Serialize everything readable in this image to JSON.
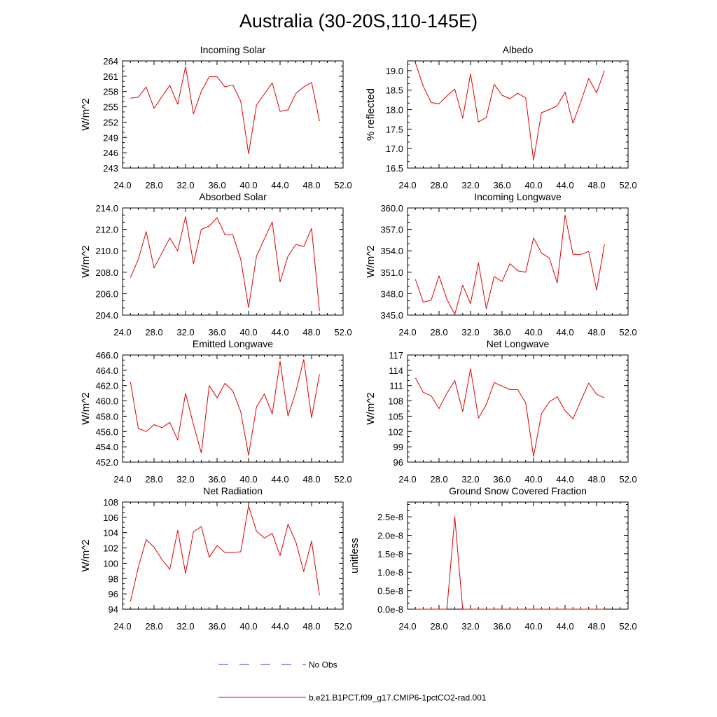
{
  "title": "Australia (30-20S,110-145E)",
  "colors": {
    "model": "#e00000",
    "obs": "#3a3ad0",
    "axis": "#000000"
  },
  "legend": [
    {
      "label": "No Obs",
      "style": "dashed",
      "color": "#3a3ad0"
    },
    {
      "label": "b.e21.B1PCT.f09_g17.CMIP6-1pctCO2-rad.001",
      "style": "solid",
      "color": "#e00000"
    }
  ],
  "chart_data": [
    {
      "type": "line",
      "title": "Incoming Solar",
      "xlabel": "",
      "ylabel": "W/m^2",
      "xlim": [
        24,
        52
      ],
      "ylim": [
        243,
        264
      ],
      "xticks": [
        "24.0",
        "28.0",
        "32.0",
        "36.0",
        "40.0",
        "44.0",
        "48.0",
        "52.0"
      ],
      "yticks": [
        "243",
        "246",
        "249",
        "252",
        "255",
        "258",
        "261",
        "264"
      ],
      "x": [
        25,
        26,
        27,
        28,
        29,
        30,
        31,
        32,
        33,
        34,
        35,
        36,
        37,
        38,
        39,
        40,
        41,
        42,
        43,
        44,
        45,
        46,
        47,
        48,
        49
      ],
      "series": [
        {
          "name": "b.e21.B1PCT.f09_g17.CMIP6-1pctCO2-rad.001",
          "values": [
            256.7,
            256.9,
            258.9,
            254.7,
            257.0,
            259.2,
            255.5,
            262.9,
            253.6,
            258.0,
            260.9,
            260.9,
            258.9,
            259.3,
            256.1,
            245.8,
            255.3,
            257.5,
            259.7,
            254.1,
            254.4,
            257.6,
            258.9,
            259.8,
            252.2
          ]
        }
      ]
    },
    {
      "type": "line",
      "title": "Albedo",
      "xlabel": "",
      "ylabel": "% reflected",
      "xlim": [
        24,
        52
      ],
      "ylim": [
        16.5,
        19.25
      ],
      "xticks": [
        "24.0",
        "28.0",
        "32.0",
        "36.0",
        "40.0",
        "44.0",
        "48.0",
        "52.0"
      ],
      "yticks": [
        "16.5",
        "17.0",
        "17.5",
        "18.0",
        "18.5",
        "19.0"
      ],
      "x": [
        25,
        26,
        27,
        28,
        29,
        30,
        31,
        32,
        33,
        34,
        35,
        36,
        37,
        38,
        39,
        40,
        41,
        42,
        43,
        44,
        45,
        46,
        47,
        48,
        49
      ],
      "series": [
        {
          "name": "b.e21.B1PCT.f09_g17.CMIP6-1pctCO2-rad.001",
          "values": [
            19.2,
            18.6,
            18.18,
            18.15,
            18.35,
            18.53,
            17.78,
            18.92,
            17.68,
            17.8,
            18.65,
            18.37,
            18.28,
            18.42,
            18.3,
            16.7,
            17.92,
            18.0,
            18.1,
            18.45,
            17.65,
            18.2,
            18.8,
            18.43,
            19.0
          ]
        }
      ]
    },
    {
      "type": "line",
      "title": "Absorbed Solar",
      "xlabel": "",
      "ylabel": "W/m^2",
      "xlim": [
        24,
        52
      ],
      "ylim": [
        204,
        214
      ],
      "xticks": [
        "24.0",
        "28.0",
        "32.0",
        "36.0",
        "40.0",
        "44.0",
        "48.0",
        "52.0"
      ],
      "yticks": [
        "204.0",
        "206.0",
        "208.0",
        "210.0",
        "212.0",
        "214.0"
      ],
      "x": [
        25,
        26,
        27,
        28,
        29,
        30,
        31,
        32,
        33,
        34,
        35,
        36,
        37,
        38,
        39,
        40,
        41,
        42,
        43,
        44,
        45,
        46,
        47,
        48,
        49
      ],
      "series": [
        {
          "name": "b.e21.B1PCT.f09_g17.CMIP6-1pctCO2-rad.001",
          "values": [
            207.5,
            209.2,
            211.8,
            208.4,
            209.8,
            211.2,
            210.0,
            213.2,
            208.8,
            212.0,
            212.3,
            213.1,
            211.5,
            211.5,
            209.2,
            204.7,
            209.5,
            211.1,
            212.7,
            207.1,
            209.5,
            210.6,
            210.4,
            212.1,
            204.4
          ]
        }
      ]
    },
    {
      "type": "line",
      "title": "Incoming Longwave",
      "xlabel": "",
      "ylabel": "W/m^2",
      "xlim": [
        24,
        52
      ],
      "ylim": [
        345,
        360
      ],
      "xticks": [
        "24.0",
        "28.0",
        "32.0",
        "36.0",
        "40.0",
        "44.0",
        "48.0",
        "52.0"
      ],
      "yticks": [
        "345.0",
        "348.0",
        "351.0",
        "354.0",
        "357.0",
        "360.0"
      ],
      "x": [
        25,
        26,
        27,
        28,
        29,
        30,
        31,
        32,
        33,
        34,
        35,
        36,
        37,
        38,
        39,
        40,
        41,
        42,
        43,
        44,
        45,
        46,
        47,
        48,
        49
      ],
      "series": [
        {
          "name": "b.e21.B1PCT.f09_g17.CMIP6-1pctCO2-rad.001",
          "values": [
            350.0,
            346.8,
            347.1,
            350.5,
            347.2,
            345.1,
            349.2,
            346.6,
            352.3,
            345.9,
            350.4,
            349.7,
            352.2,
            351.2,
            351.0,
            355.8,
            353.7,
            353.0,
            349.5,
            359.0,
            353.5,
            353.5,
            353.9,
            348.5,
            354.9
          ]
        }
      ]
    },
    {
      "type": "line",
      "title": "Emitted Longwave",
      "xlabel": "",
      "ylabel": "W/m^2",
      "xlim": [
        24,
        52
      ],
      "ylim": [
        452,
        466
      ],
      "xticks": [
        "24.0",
        "28.0",
        "32.0",
        "36.0",
        "40.0",
        "44.0",
        "48.0",
        "52.0"
      ],
      "yticks": [
        "452.0",
        "454.0",
        "456.0",
        "458.0",
        "460.0",
        "462.0",
        "464.0",
        "466.0"
      ],
      "x": [
        25,
        26,
        27,
        28,
        29,
        30,
        31,
        32,
        33,
        34,
        35,
        36,
        37,
        38,
        39,
        40,
        41,
        42,
        43,
        44,
        45,
        46,
        47,
        48,
        49
      ],
      "series": [
        {
          "name": "b.e21.B1PCT.f09_g17.CMIP6-1pctCO2-rad.001",
          "values": [
            462.5,
            456.4,
            456.0,
            456.9,
            456.5,
            457.2,
            454.9,
            461.0,
            456.9,
            453.2,
            462.0,
            460.4,
            462.3,
            461.3,
            458.6,
            452.9,
            459.2,
            460.9,
            458.3,
            465.2,
            458.0,
            461.2,
            465.4,
            457.8,
            463.5
          ]
        }
      ]
    },
    {
      "type": "line",
      "title": "Net Longwave",
      "xlabel": "",
      "ylabel": "W/m^2",
      "xlim": [
        24,
        52
      ],
      "ylim": [
        96,
        117
      ],
      "xticks": [
        "24.0",
        "28.0",
        "32.0",
        "36.0",
        "40.0",
        "44.0",
        "48.0",
        "52.0"
      ],
      "yticks": [
        "96",
        "99",
        "102",
        "105",
        "108",
        "111",
        "114",
        "117"
      ],
      "x": [
        25,
        26,
        27,
        28,
        29,
        30,
        31,
        32,
        33,
        34,
        35,
        36,
        37,
        38,
        39,
        40,
        41,
        42,
        43,
        44,
        45,
        46,
        47,
        48,
        49
      ],
      "series": [
        {
          "name": "b.e21.B1PCT.f09_g17.CMIP6-1pctCO2-rad.001",
          "values": [
            112.5,
            109.7,
            109.0,
            106.5,
            109.5,
            112.0,
            105.9,
            114.3,
            104.6,
            107.3,
            111.6,
            110.9,
            110.2,
            110.2,
            107.6,
            97.1,
            105.5,
            107.8,
            108.8,
            106.1,
            104.5,
            108.0,
            111.5,
            109.3,
            108.6
          ]
        }
      ]
    },
    {
      "type": "line",
      "title": "Net Radiation",
      "xlabel": "",
      "ylabel": "W/m^2",
      "xlim": [
        24,
        52
      ],
      "ylim": [
        94,
        108
      ],
      "xticks": [
        "24.0",
        "28.0",
        "32.0",
        "36.0",
        "40.0",
        "44.0",
        "48.0",
        "52.0"
      ],
      "yticks": [
        "94",
        "96",
        "98",
        "100",
        "102",
        "104",
        "106",
        "108"
      ],
      "x": [
        25,
        26,
        27,
        28,
        29,
        30,
        31,
        32,
        33,
        34,
        35,
        36,
        37,
        38,
        39,
        40,
        41,
        42,
        43,
        44,
        45,
        46,
        47,
        48,
        49
      ],
      "series": [
        {
          "name": "b.e21.B1PCT.f09_g17.CMIP6-1pctCO2-rad.001",
          "values": [
            95.0,
            99.5,
            103.1,
            102.1,
            100.5,
            99.2,
            104.3,
            98.7,
            104.1,
            104.8,
            100.8,
            102.3,
            101.4,
            101.4,
            101.5,
            107.5,
            104.2,
            103.3,
            103.9,
            101.0,
            105.1,
            102.8,
            98.9,
            102.9,
            95.8
          ]
        }
      ]
    },
    {
      "type": "line",
      "title": "Ground Snow Covered Fraction",
      "xlabel": "",
      "ylabel": "unitless",
      "xlim": [
        24,
        52
      ],
      "ylim": [
        0,
        2.9e-08
      ],
      "xticks": [
        "24.0",
        "28.0",
        "32.0",
        "36.0",
        "40.0",
        "44.0",
        "48.0",
        "52.0"
      ],
      "yticks": [
        "0.0e-8",
        "0.5e-8",
        "1.0e-8",
        "1.5e-8",
        "2.0e-8",
        "2.5e-8"
      ],
      "x": [
        25,
        26,
        27,
        28,
        29,
        30,
        31,
        32,
        33,
        34,
        35,
        36,
        37,
        38,
        39,
        40,
        41,
        42,
        43,
        44,
        45,
        46,
        47,
        48,
        49
      ],
      "series": [
        {
          "name": "b.e21.B1PCT.f09_g17.CMIP6-1pctCO2-rad.001",
          "values": [
            0,
            0,
            0,
            0,
            0,
            2.5e-08,
            0,
            0,
            0,
            0,
            0,
            0,
            0,
            0,
            0,
            0,
            0,
            0,
            0,
            0,
            0,
            0,
            0,
            0,
            0
          ]
        }
      ]
    }
  ]
}
